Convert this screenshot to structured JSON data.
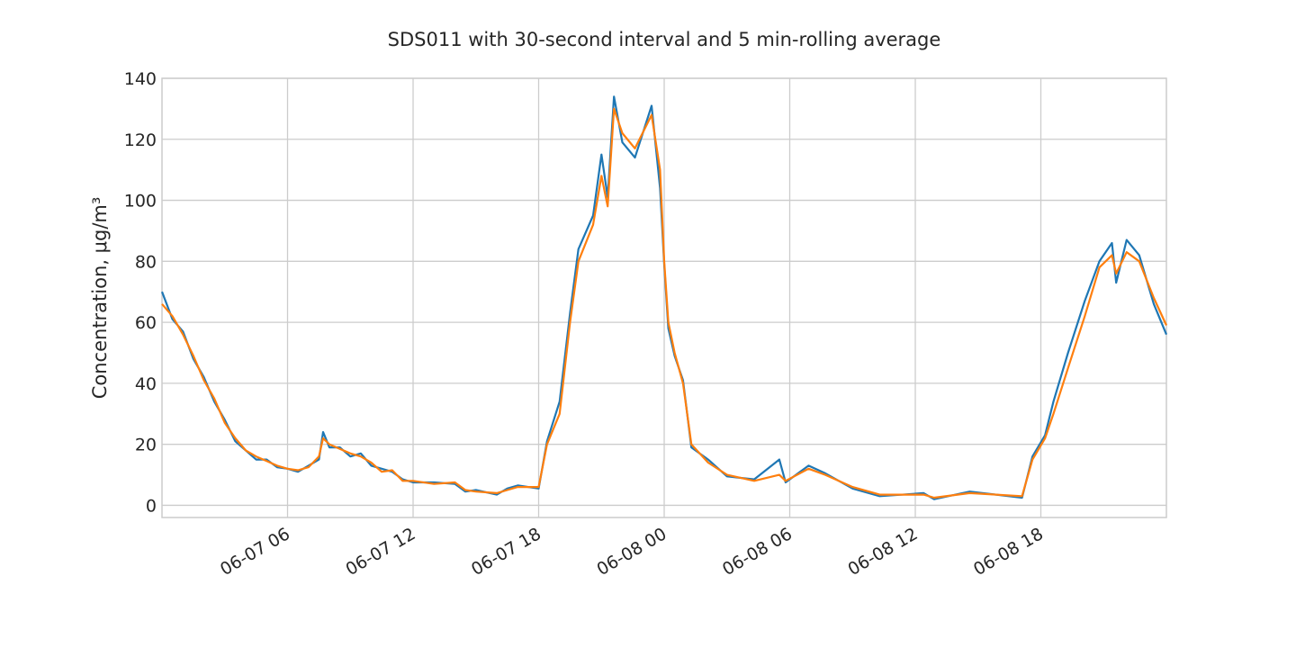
{
  "chart_data": {
    "type": "line",
    "title": "SDS011 with 30-second interval and 5 min-rolling average",
    "y_label": "Concentration, μg/m³",
    "x": [
      0,
      0.5,
      1,
      1.5,
      2,
      2.5,
      3,
      3.5,
      4,
      4.5,
      5,
      5.5,
      6,
      6.5,
      7,
      7.5,
      7.7,
      8,
      8.5,
      9,
      9.5,
      10,
      10.5,
      11,
      11.5,
      12,
      13,
      14,
      14.5,
      15,
      16,
      16.5,
      17,
      18,
      18.4,
      19,
      19.5,
      19.9,
      20.6,
      21,
      21.3,
      21.6,
      22,
      22.6,
      23.4,
      23.8,
      24,
      24.2,
      24.5,
      24.9,
      25.3,
      26.1,
      27,
      28.3,
      29.5,
      29.8,
      30.9,
      31.7,
      33,
      34.3,
      36.4,
      36.9,
      38.6,
      41.1,
      41.6,
      42.2,
      42.6,
      43.3,
      44.1,
      44.8,
      45.4,
      45.6,
      46.1,
      46.7,
      47.4,
      48
    ],
    "series": [
      {
        "color": "#1f77b4",
        "values": [
          70,
          61,
          57,
          48,
          42,
          34,
          28,
          21,
          18,
          15,
          15,
          12.5,
          12,
          11,
          13,
          15,
          24,
          19,
          19,
          16,
          17,
          13,
          12,
          11,
          8.5,
          7.5,
          7.5,
          7,
          4.5,
          5,
          3.5,
          5.5,
          6.5,
          5.5,
          21,
          34,
          63,
          84,
          95,
          115,
          101,
          134,
          119,
          114,
          131,
          104,
          79,
          58,
          49,
          41,
          19,
          15,
          9.5,
          8.5,
          15,
          7.5,
          13,
          10.5,
          5.5,
          3,
          4,
          2,
          4.5,
          2.5,
          16,
          23,
          34,
          50,
          67,
          80,
          86,
          73,
          87,
          82,
          66,
          56
        ]
      },
      {
        "color": "#ff7f0e",
        "values": [
          66,
          62,
          56,
          49,
          41,
          35,
          27,
          22,
          18,
          16,
          14.5,
          13,
          12,
          11.5,
          12.5,
          16,
          22,
          20,
          18.5,
          17,
          16,
          14,
          11,
          11.5,
          8,
          8,
          7,
          7.5,
          5,
          4.5,
          4,
          5,
          6,
          6,
          20,
          30,
          60,
          80,
          92,
          108,
          98,
          130,
          122,
          117,
          128,
          110,
          80,
          60,
          50,
          40,
          20,
          14,
          10,
          8,
          10,
          8,
          12,
          10,
          6,
          3.5,
          3.5,
          2.5,
          4,
          3,
          15,
          22,
          30,
          45,
          62,
          78,
          82,
          76,
          83,
          80,
          68,
          59
        ]
      }
    ],
    "xlim": [
      0,
      48
    ],
    "xticks": [
      {
        "value": 6,
        "label": "06-07 06"
      },
      {
        "value": 12,
        "label": "06-07 12"
      },
      {
        "value": 18,
        "label": "06-07 18"
      },
      {
        "value": 24,
        "label": "06-08 00"
      },
      {
        "value": 30,
        "label": "06-08 06"
      },
      {
        "value": 36,
        "label": "06-08 12"
      },
      {
        "value": 42,
        "label": "06-08 18"
      }
    ],
    "ylim": [
      -4,
      140
    ],
    "yticks": [
      0,
      20,
      40,
      60,
      80,
      100,
      120,
      140
    ],
    "grid": true
  }
}
